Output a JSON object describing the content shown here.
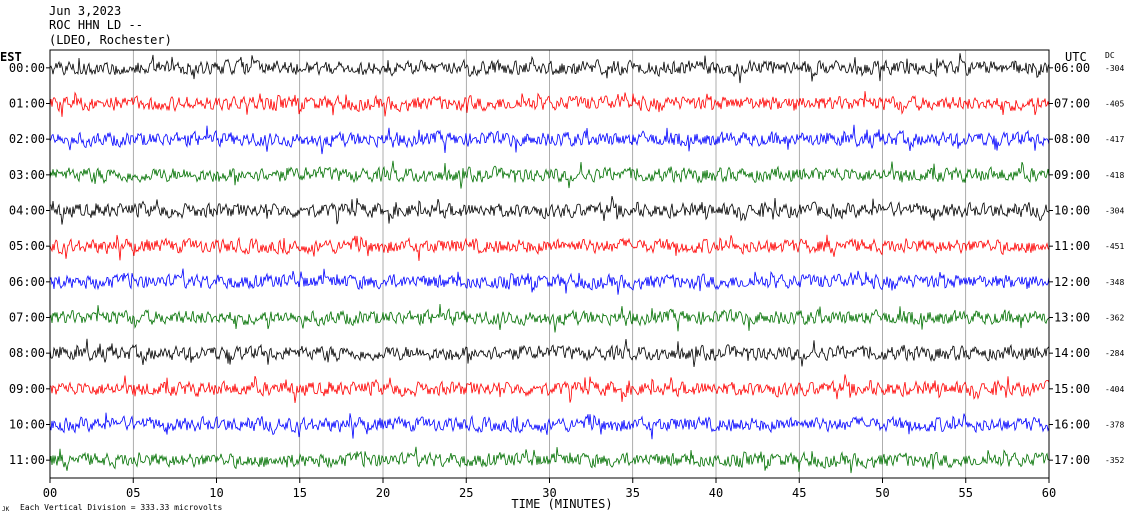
{
  "header": {
    "date": "Jun 3,2023",
    "station": "ROC HHN LD --",
    "network": "(LDEO, Rochester)"
  },
  "chart_data": {
    "type": "line",
    "left_axis_label": "EST",
    "right_axis_label": "UTC",
    "dc_label": "DC",
    "xlabel": "TIME (MINUTES)",
    "x_ticks": [
      "00",
      "05",
      "10",
      "15",
      "20",
      "25",
      "30",
      "35",
      "40",
      "45",
      "50",
      "55",
      "60"
    ],
    "xlim": [
      0,
      60
    ],
    "scale_mark": "JK",
    "scale_note": "Each Vertical Division =  333.33 microvolts",
    "trace_colors": [
      "#000000",
      "#ff0000",
      "#0000ff",
      "#007000"
    ],
    "rows": [
      {
        "est": "00:00",
        "utc": "06:00",
        "dc": "-304"
      },
      {
        "est": "01:00",
        "utc": "07:00",
        "dc": "-405"
      },
      {
        "est": "02:00",
        "utc": "08:00",
        "dc": "-417"
      },
      {
        "est": "03:00",
        "utc": "09:00",
        "dc": "-418"
      },
      {
        "est": "04:00",
        "utc": "10:00",
        "dc": "-304"
      },
      {
        "est": "05:00",
        "utc": "11:00",
        "dc": "-451"
      },
      {
        "est": "06:00",
        "utc": "12:00",
        "dc": "-348"
      },
      {
        "est": "07:00",
        "utc": "13:00",
        "dc": "-362"
      },
      {
        "est": "08:00",
        "utc": "14:00",
        "dc": "-284"
      },
      {
        "est": "09:00",
        "utc": "15:00",
        "dc": "-404"
      },
      {
        "est": "10:00",
        "utc": "16:00",
        "dc": "-378"
      },
      {
        "est": "11:00",
        "utc": "17:00",
        "dc": "-352"
      }
    ]
  }
}
